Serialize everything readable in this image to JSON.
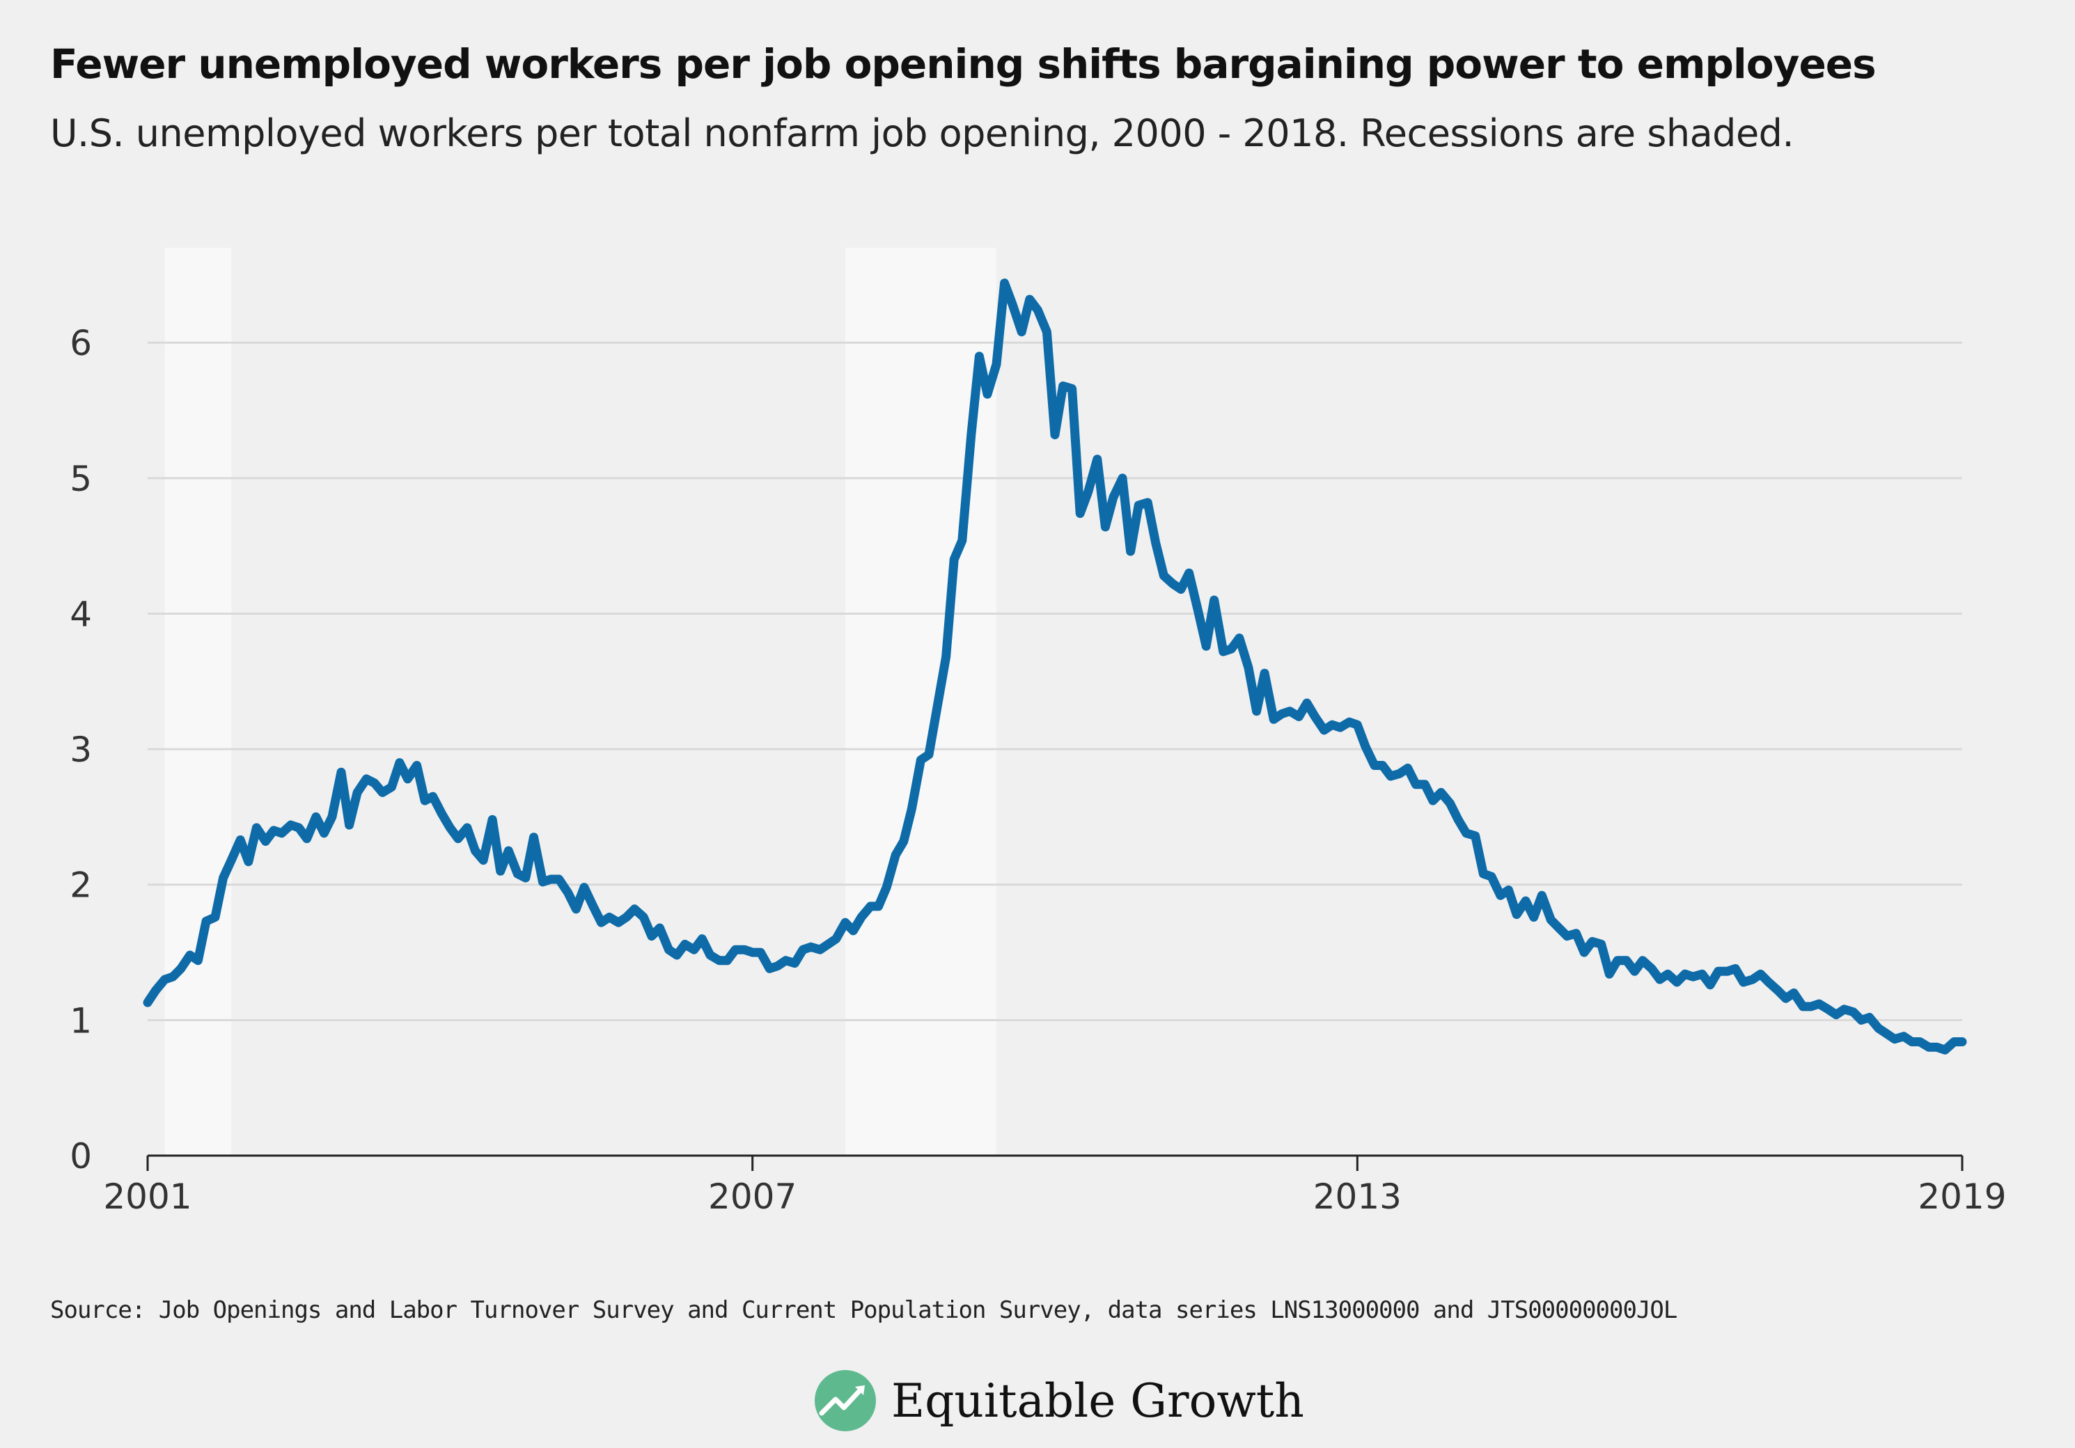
{
  "header": {
    "title": "Fewer unemployed workers per job opening shifts bargaining power to employees",
    "subtitle": "U.S. unemployed workers per total nonfarm job opening, 2000 - 2018. Recessions are shaded."
  },
  "footer": {
    "source": "Source: Job Openings and Labor Turnover Survey and Current Population Survey, data series LNS13000000 and JTS00000000JOL",
    "brand": "Equitable Growth"
  },
  "colors": {
    "line": "#0e6ba8",
    "background": "#f0f0f0",
    "recession": "#f8f8f8",
    "grid": "#d9d9d9",
    "axis": "#222222",
    "brand_green": "#5fb98f"
  },
  "chart_data": {
    "type": "line",
    "title": "Fewer unemployed workers per job opening shifts bargaining power to employees",
    "subtitle": "U.S. unemployed workers per total nonfarm job opening, 2000 - 2018. Recessions are shaded.",
    "xlabel": "",
    "ylabel": "",
    "xlim": [
      2001,
      2019
    ],
    "ylim": [
      0,
      6.7
    ],
    "x_ticks": [
      2001,
      2007,
      2013,
      2019
    ],
    "x_tick_labels": [
      "2001",
      "2007",
      "2013",
      "2019"
    ],
    "y_ticks": [
      0,
      1,
      2,
      3,
      4,
      5,
      6
    ],
    "y_tick_labels": [
      "0",
      "1",
      "2",
      "3",
      "4",
      "5",
      "6"
    ],
    "grid": "horizontal",
    "legend": "none",
    "recessions": [
      [
        2001.17,
        2001.83
      ],
      [
        2007.92,
        2009.42
      ]
    ],
    "series": [
      {
        "points": [
          [
            2001.0,
            1.13
          ],
          [
            2001.08,
            1.22
          ],
          [
            2001.17,
            1.3
          ],
          [
            2001.25,
            1.32
          ],
          [
            2001.33,
            1.38
          ],
          [
            2001.42,
            1.48
          ],
          [
            2001.5,
            1.44
          ],
          [
            2001.58,
            1.73
          ],
          [
            2001.67,
            1.76
          ],
          [
            2001.75,
            2.05
          ],
          [
            2001.83,
            2.18
          ],
          [
            2001.92,
            2.33
          ],
          [
            2002.0,
            2.17
          ],
          [
            2002.08,
            2.42
          ],
          [
            2002.17,
            2.32
          ],
          [
            2002.25,
            2.4
          ],
          [
            2002.33,
            2.38
          ],
          [
            2002.42,
            2.44
          ],
          [
            2002.5,
            2.42
          ],
          [
            2002.58,
            2.34
          ],
          [
            2002.67,
            2.5
          ],
          [
            2002.75,
            2.38
          ],
          [
            2002.83,
            2.5
          ],
          [
            2002.92,
            2.83
          ],
          [
            2003.0,
            2.44
          ],
          [
            2003.08,
            2.68
          ],
          [
            2003.17,
            2.78
          ],
          [
            2003.25,
            2.75
          ],
          [
            2003.33,
            2.68
          ],
          [
            2003.42,
            2.72
          ],
          [
            2003.5,
            2.9
          ],
          [
            2003.58,
            2.78
          ],
          [
            2003.67,
            2.88
          ],
          [
            2003.75,
            2.62
          ],
          [
            2003.83,
            2.65
          ],
          [
            2003.92,
            2.52
          ],
          [
            2004.0,
            2.42
          ],
          [
            2004.08,
            2.34
          ],
          [
            2004.17,
            2.42
          ],
          [
            2004.25,
            2.25
          ],
          [
            2004.33,
            2.18
          ],
          [
            2004.42,
            2.48
          ],
          [
            2004.5,
            2.1
          ],
          [
            2004.58,
            2.25
          ],
          [
            2004.67,
            2.08
          ],
          [
            2004.75,
            2.05
          ],
          [
            2004.83,
            2.35
          ],
          [
            2004.92,
            2.02
          ],
          [
            2005.0,
            2.04
          ],
          [
            2005.08,
            2.04
          ],
          [
            2005.17,
            1.94
          ],
          [
            2005.25,
            1.82
          ],
          [
            2005.33,
            1.98
          ],
          [
            2005.42,
            1.84
          ],
          [
            2005.5,
            1.72
          ],
          [
            2005.58,
            1.76
          ],
          [
            2005.67,
            1.72
          ],
          [
            2005.75,
            1.76
          ],
          [
            2005.83,
            1.82
          ],
          [
            2005.92,
            1.76
          ],
          [
            2006.0,
            1.62
          ],
          [
            2006.08,
            1.68
          ],
          [
            2006.17,
            1.52
          ],
          [
            2006.25,
            1.48
          ],
          [
            2006.33,
            1.56
          ],
          [
            2006.42,
            1.52
          ],
          [
            2006.5,
            1.6
          ],
          [
            2006.58,
            1.48
          ],
          [
            2006.67,
            1.44
          ],
          [
            2006.75,
            1.44
          ],
          [
            2006.83,
            1.52
          ],
          [
            2006.92,
            1.52
          ],
          [
            2007.0,
            1.5
          ],
          [
            2007.08,
            1.5
          ],
          [
            2007.17,
            1.38
          ],
          [
            2007.25,
            1.4
          ],
          [
            2007.33,
            1.44
          ],
          [
            2007.42,
            1.42
          ],
          [
            2007.5,
            1.52
          ],
          [
            2007.58,
            1.54
          ],
          [
            2007.67,
            1.52
          ],
          [
            2007.75,
            1.56
          ],
          [
            2007.83,
            1.6
          ],
          [
            2007.92,
            1.72
          ],
          [
            2008.0,
            1.66
          ],
          [
            2008.08,
            1.76
          ],
          [
            2008.17,
            1.84
          ],
          [
            2008.25,
            1.84
          ],
          [
            2008.33,
            1.98
          ],
          [
            2008.42,
            2.22
          ],
          [
            2008.5,
            2.32
          ],
          [
            2008.58,
            2.56
          ],
          [
            2008.67,
            2.92
          ],
          [
            2008.75,
            2.96
          ],
          [
            2008.83,
            3.3
          ],
          [
            2008.92,
            3.68
          ],
          [
            2009.0,
            4.4
          ],
          [
            2009.08,
            4.54
          ],
          [
            2009.17,
            5.32
          ],
          [
            2009.25,
            5.9
          ],
          [
            2009.33,
            5.62
          ],
          [
            2009.42,
            5.84
          ],
          [
            2009.5,
            6.44
          ],
          [
            2009.58,
            6.28
          ],
          [
            2009.67,
            6.08
          ],
          [
            2009.75,
            6.32
          ],
          [
            2009.83,
            6.24
          ],
          [
            2009.92,
            6.08
          ],
          [
            2010.0,
            5.32
          ],
          [
            2010.08,
            5.68
          ],
          [
            2010.17,
            5.66
          ],
          [
            2010.25,
            4.74
          ],
          [
            2010.33,
            4.9
          ],
          [
            2010.42,
            5.14
          ],
          [
            2010.5,
            4.64
          ],
          [
            2010.58,
            4.86
          ],
          [
            2010.67,
            5.0
          ],
          [
            2010.75,
            4.46
          ],
          [
            2010.83,
            4.8
          ],
          [
            2010.92,
            4.82
          ],
          [
            2011.0,
            4.52
          ],
          [
            2011.08,
            4.28
          ],
          [
            2011.17,
            4.22
          ],
          [
            2011.25,
            4.18
          ],
          [
            2011.33,
            4.3
          ],
          [
            2011.42,
            4.02
          ],
          [
            2011.5,
            3.76
          ],
          [
            2011.58,
            4.1
          ],
          [
            2011.67,
            3.72
          ],
          [
            2011.75,
            3.74
          ],
          [
            2011.83,
            3.82
          ],
          [
            2011.92,
            3.6
          ],
          [
            2012.0,
            3.28
          ],
          [
            2012.08,
            3.56
          ],
          [
            2012.17,
            3.22
          ],
          [
            2012.25,
            3.26
          ],
          [
            2012.33,
            3.28
          ],
          [
            2012.42,
            3.24
          ],
          [
            2012.5,
            3.34
          ],
          [
            2012.58,
            3.24
          ],
          [
            2012.67,
            3.14
          ],
          [
            2012.75,
            3.18
          ],
          [
            2012.83,
            3.16
          ],
          [
            2012.92,
            3.2
          ],
          [
            2013.0,
            3.18
          ],
          [
            2013.08,
            3.02
          ],
          [
            2013.17,
            2.88
          ],
          [
            2013.25,
            2.88
          ],
          [
            2013.33,
            2.8
          ],
          [
            2013.42,
            2.82
          ],
          [
            2013.5,
            2.86
          ],
          [
            2013.58,
            2.74
          ],
          [
            2013.67,
            2.74
          ],
          [
            2013.75,
            2.62
          ],
          [
            2013.83,
            2.68
          ],
          [
            2013.92,
            2.6
          ],
          [
            2014.0,
            2.48
          ],
          [
            2014.08,
            2.38
          ],
          [
            2014.17,
            2.36
          ],
          [
            2014.25,
            2.08
          ],
          [
            2014.33,
            2.06
          ],
          [
            2014.42,
            1.92
          ],
          [
            2014.5,
            1.96
          ],
          [
            2014.58,
            1.78
          ],
          [
            2014.67,
            1.88
          ],
          [
            2014.75,
            1.76
          ],
          [
            2014.83,
            1.92
          ],
          [
            2014.92,
            1.74
          ],
          [
            2015.0,
            1.68
          ],
          [
            2015.08,
            1.62
          ],
          [
            2015.17,
            1.64
          ],
          [
            2015.25,
            1.5
          ],
          [
            2015.33,
            1.58
          ],
          [
            2015.42,
            1.56
          ],
          [
            2015.5,
            1.34
          ],
          [
            2015.58,
            1.44
          ],
          [
            2015.67,
            1.44
          ],
          [
            2015.75,
            1.36
          ],
          [
            2015.83,
            1.44
          ],
          [
            2015.92,
            1.38
          ],
          [
            2016.0,
            1.3
          ],
          [
            2016.08,
            1.34
          ],
          [
            2016.17,
            1.28
          ],
          [
            2016.25,
            1.34
          ],
          [
            2016.33,
            1.32
          ],
          [
            2016.42,
            1.34
          ],
          [
            2016.5,
            1.26
          ],
          [
            2016.58,
            1.36
          ],
          [
            2016.67,
            1.36
          ],
          [
            2016.75,
            1.38
          ],
          [
            2016.83,
            1.28
          ],
          [
            2016.92,
            1.3
          ],
          [
            2017.0,
            1.34
          ],
          [
            2017.08,
            1.28
          ],
          [
            2017.17,
            1.22
          ],
          [
            2017.25,
            1.16
          ],
          [
            2017.33,
            1.2
          ],
          [
            2017.42,
            1.1
          ],
          [
            2017.5,
            1.1
          ],
          [
            2017.58,
            1.12
          ],
          [
            2017.67,
            1.08
          ],
          [
            2017.75,
            1.04
          ],
          [
            2017.83,
            1.08
          ],
          [
            2017.92,
            1.06
          ],
          [
            2018.0,
            1.0
          ],
          [
            2018.08,
            1.02
          ],
          [
            2018.17,
            0.94
          ],
          [
            2018.25,
            0.9
          ],
          [
            2018.33,
            0.86
          ],
          [
            2018.42,
            0.88
          ],
          [
            2018.5,
            0.84
          ],
          [
            2018.58,
            0.84
          ],
          [
            2018.67,
            0.8
          ],
          [
            2018.75,
            0.8
          ],
          [
            2018.83,
            0.78
          ],
          [
            2018.92,
            0.84
          ],
          [
            2019.0,
            0.84
          ]
        ]
      }
    ]
  }
}
